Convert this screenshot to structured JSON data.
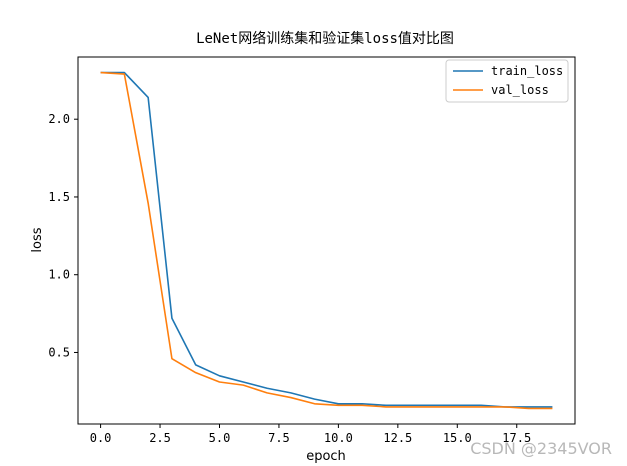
{
  "chart_data": {
    "type": "line",
    "title": "LeNet网络训练集和验证集loss值对比图",
    "xlabel": "epoch",
    "ylabel": "loss",
    "xlim": [
      -0.95,
      19.95
    ],
    "ylim": [
      0.04,
      2.4
    ],
    "xticks": [
      0.0,
      2.5,
      5.0,
      7.5,
      10.0,
      12.5,
      15.0,
      17.5
    ],
    "xtick_labels": [
      "0.0",
      "2.5",
      "5.0",
      "7.5",
      "10.0",
      "12.5",
      "15.0",
      "17.5"
    ],
    "yticks": [
      0.5,
      1.0,
      1.5,
      2.0
    ],
    "ytick_labels": [
      "0.5",
      "1.0",
      "1.5",
      "2.0"
    ],
    "grid": false,
    "legend_position": "top-right",
    "x": [
      0,
      1,
      2,
      3,
      4,
      5,
      6,
      7,
      8,
      9,
      10,
      11,
      12,
      13,
      14,
      15,
      16,
      17,
      18,
      19
    ],
    "series": [
      {
        "name": "train_loss",
        "color": "#1f77b4",
        "values": [
          2.3,
          2.3,
          2.14,
          0.72,
          0.42,
          0.35,
          0.31,
          0.27,
          0.24,
          0.2,
          0.17,
          0.17,
          0.16,
          0.16,
          0.16,
          0.16,
          0.16,
          0.15,
          0.15,
          0.15
        ]
      },
      {
        "name": "val_loss",
        "color": "#ff7f0e",
        "values": [
          2.3,
          2.29,
          1.46,
          0.46,
          0.37,
          0.31,
          0.29,
          0.24,
          0.21,
          0.17,
          0.16,
          0.16,
          0.15,
          0.15,
          0.15,
          0.15,
          0.15,
          0.15,
          0.14,
          0.14
        ]
      }
    ]
  },
  "watermark": "CSDN @2345VOR"
}
